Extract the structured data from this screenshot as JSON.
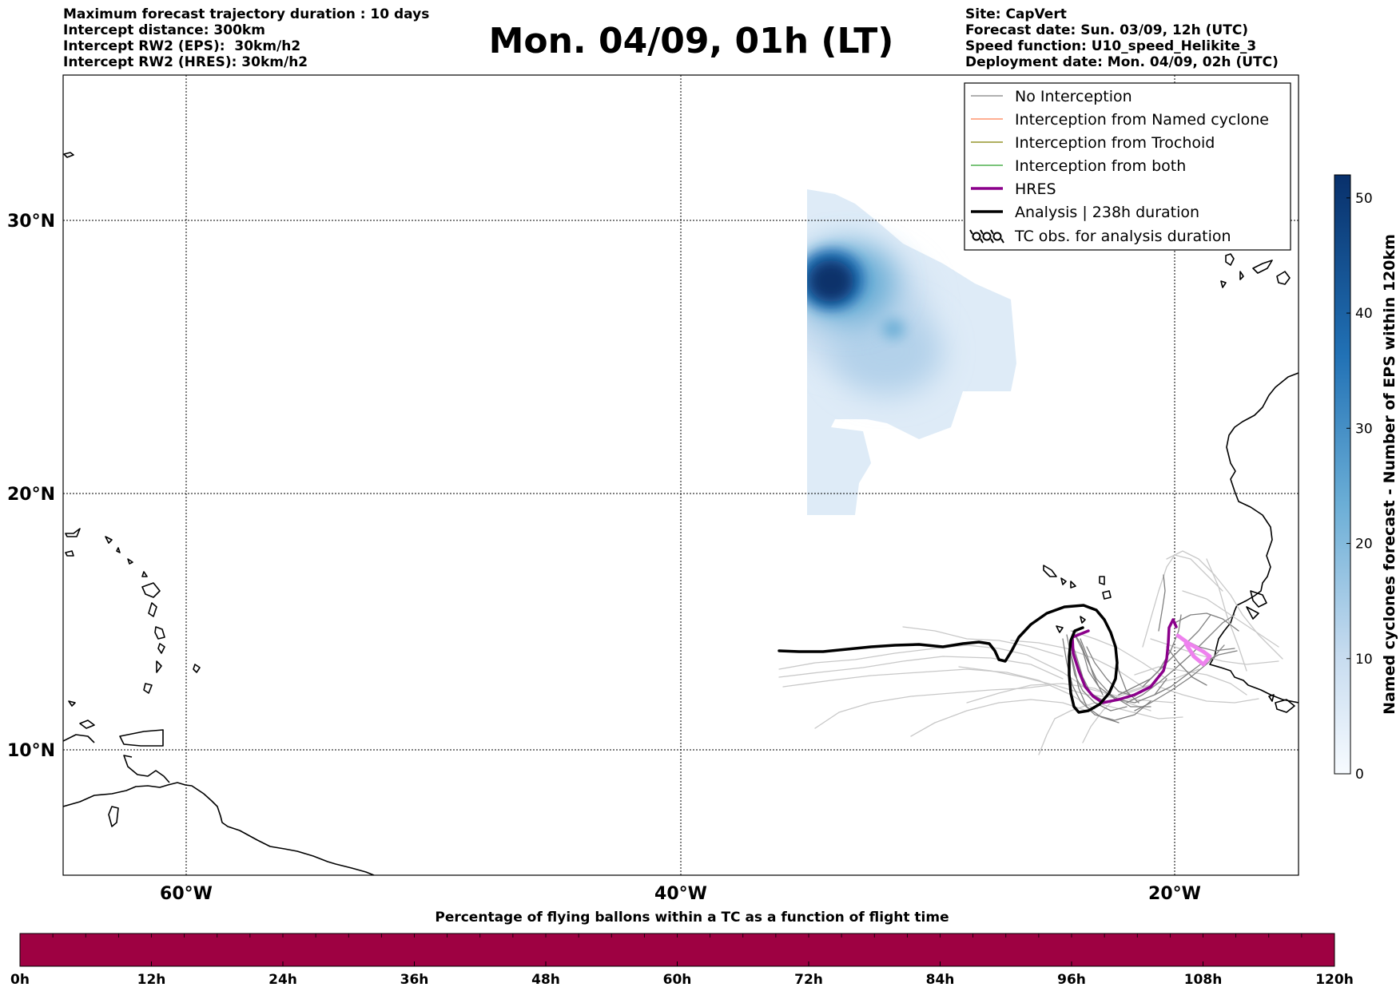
{
  "header": {
    "left_lines": [
      "Maximum forecast trajectory duration : 10 days",
      "Intercept distance: 300km",
      "Intercept RW2 (EPS):  30km/h2",
      "Intercept RW2 (HRES): 30km/h2"
    ],
    "title": "Mon. 04/09, 01h (LT)",
    "right_lines": [
      "Site: CapVert",
      "Forecast date: Sun. 03/09, 12h (UTC)",
      "Speed function: U10_speed_Helikite_3",
      "Deployment date: Mon. 04/09, 02h (UTC)"
    ]
  },
  "map": {
    "lat_labels": [
      "30°N",
      "20°N",
      "10°N"
    ],
    "lon_labels": [
      "60°W",
      "40°W",
      "20°W"
    ]
  },
  "legend": {
    "entries": [
      {
        "label": "No Interception",
        "color": "#808080",
        "icon": "thin-line"
      },
      {
        "label": "Interception from Named cyclone",
        "color": "#ff7f50",
        "icon": "thin-line"
      },
      {
        "label": "Interception from Trochoid",
        "color": "#808000",
        "icon": "thin-line"
      },
      {
        "label": "Interception from both",
        "color": "#2ca02c",
        "icon": "thin-line"
      },
      {
        "label": "HRES",
        "color": "#8b008b",
        "icon": "thick-line"
      },
      {
        "label": "Analysis | 238h duration",
        "color": "#000000",
        "icon": "thick-line"
      },
      {
        "label": "TC obs. for analysis duration",
        "color": "#000000",
        "icon": "cyclone-symbols"
      }
    ]
  },
  "colorbar": {
    "label": "Named cyclones forecast - Number of EPS within 120km",
    "ticks": [
      "0",
      "10",
      "20",
      "30",
      "40",
      "50"
    ],
    "range": [
      0,
      52
    ],
    "colormap": "Blues"
  },
  "bottom_bar": {
    "title": "Percentage of flying ballons within a TC as a function of flight time",
    "ticks": [
      "0h",
      "12h",
      "24h",
      "36h",
      "48h",
      "60h",
      "72h",
      "84h",
      "96h",
      "108h",
      "120h"
    ],
    "fill_color": "#9e0142"
  },
  "colors": {
    "no_interception": "#808080",
    "hres": "#8b008b",
    "analysis": "#000000",
    "tc_density_max": "#08306b",
    "tc_density_min": "#deebf7"
  }
}
